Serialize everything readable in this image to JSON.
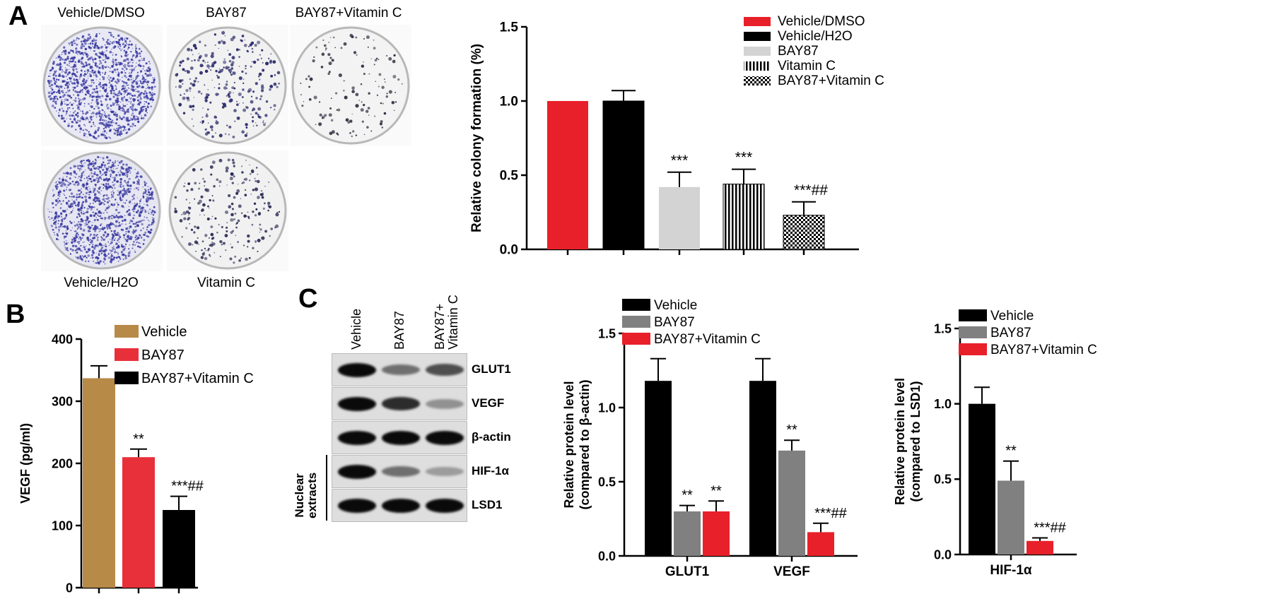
{
  "figure": {
    "panels": {
      "a": "A",
      "b": "B",
      "c": "C"
    },
    "panel_a": {
      "dishes": [
        {
          "label": "Vehicle/DMSO",
          "density": 0.95,
          "dot_color": "#3a3aa0",
          "fill": "#e9e9f5"
        },
        {
          "label": "BAY87",
          "density": 0.18,
          "dot_color": "#2a2a6a",
          "fill": "#f1f1f1"
        },
        {
          "label": "BAY87+Vitamin C",
          "density": 0.07,
          "dot_color": "#333344",
          "fill": "#f3f3f3"
        },
        {
          "label": "Vehicle/H2O",
          "density": 0.9,
          "dot_color": "#3a3aa0",
          "fill": "#e6e6f2"
        },
        {
          "label": "Vitamin C",
          "density": 0.14,
          "dot_color": "#2a2a55",
          "fill": "#f1f1f1"
        }
      ]
    },
    "panel_c_blot": {
      "lanes": [
        "Vehicle",
        "BAY87",
        "BAY87+\nVitamin C"
      ],
      "bands": [
        {
          "label": "GLUT1",
          "intensity": [
            1.0,
            0.55,
            0.7
          ]
        },
        {
          "label": "VEGF",
          "intensity": [
            1.0,
            0.85,
            0.4
          ]
        },
        {
          "label": "β-actin",
          "intensity": [
            1.0,
            1.0,
            1.0
          ]
        },
        {
          "label": "HIF-1α",
          "intensity": [
            1.0,
            0.55,
            0.35
          ]
        },
        {
          "label": "LSD1",
          "intensity": [
            1.0,
            1.0,
            1.0
          ]
        }
      ],
      "bracket_label": "Nuclear\nextracts"
    }
  },
  "chart_data": [
    {
      "id": "colony",
      "type": "bar",
      "ylabel": "Relative colony formation (%)",
      "ylim": [
        0,
        1.5
      ],
      "yticks": [
        "0.0",
        "0.5",
        "1.0",
        "1.5"
      ],
      "ytick_values": [
        0,
        0.5,
        1.0,
        1.5
      ],
      "legend_position": "top-right",
      "series": [
        {
          "name": "Vehicle/DMSO",
          "value": 1.0,
          "error": 0,
          "annotation": "",
          "color": "#e8202a",
          "pattern": "solid"
        },
        {
          "name": "Vehicle/H2O",
          "value": 1.0,
          "error": 0.07,
          "annotation": "",
          "color": "#000000",
          "pattern": "solid"
        },
        {
          "name": "BAY87",
          "value": 0.42,
          "error": 0.1,
          "annotation": "***",
          "color": "#d3d3d3",
          "pattern": "solid"
        },
        {
          "name": "Vitamin C",
          "value": 0.44,
          "error": 0.1,
          "annotation": "***",
          "color": "#000000",
          "pattern": "vstripes"
        },
        {
          "name": "BAY87+Vitamin C",
          "value": 0.23,
          "error": 0.09,
          "annotation": "***##",
          "color": "#000000",
          "pattern": "checker"
        }
      ]
    },
    {
      "id": "vegf",
      "type": "bar",
      "ylabel": "VEGF (pg/ml)",
      "ylim": [
        0,
        400
      ],
      "yticks": [
        "0",
        "100",
        "200",
        "300",
        "400"
      ],
      "ytick_values": [
        0,
        100,
        200,
        300,
        400
      ],
      "legend_position": "top-right",
      "series": [
        {
          "name": "Vehicle",
          "value": 337,
          "error": 20,
          "annotation": "",
          "color": "#b88a48"
        },
        {
          "name": "BAY87",
          "value": 210,
          "error": 13,
          "annotation": "**",
          "color": "#e8303a"
        },
        {
          "name": "BAY87+Vitamin C",
          "value": 125,
          "error": 22,
          "annotation": "***##",
          "color": "#000000"
        }
      ]
    },
    {
      "id": "protein_actin",
      "type": "bar",
      "ylabel": "Relative protein level\n(compared to β-actin)",
      "ylim": [
        0,
        1.5
      ],
      "yticks": [
        "0.0",
        "0.5",
        "1.0",
        "1.5"
      ],
      "ytick_values": [
        0,
        0.5,
        1.0,
        1.5
      ],
      "categories": [
        "GLUT1",
        "VEGF"
      ],
      "legend_position": "top",
      "series": [
        {
          "name": "Vehicle",
          "color": "#000000",
          "values": [
            1.18,
            1.18
          ],
          "errors": [
            0.15,
            0.15
          ],
          "annotations": [
            "",
            ""
          ]
        },
        {
          "name": "BAY87",
          "color": "#808080",
          "values": [
            0.3,
            0.71
          ],
          "errors": [
            0.04,
            0.07
          ],
          "annotations": [
            "**",
            "**"
          ]
        },
        {
          "name": "BAY87+Vitamin C",
          "color": "#e8202a",
          "values": [
            0.3,
            0.16
          ],
          "errors": [
            0.07,
            0.06
          ],
          "annotations": [
            "**",
            "***##"
          ]
        }
      ]
    },
    {
      "id": "protein_lsd1",
      "type": "bar",
      "ylabel": "Relative protein level\n(compared to LSD1)",
      "ylim": [
        0,
        1.5
      ],
      "yticks": [
        "0.0",
        "0.5",
        "1.0",
        "1.5"
      ],
      "ytick_values": [
        0,
        0.5,
        1.0,
        1.5
      ],
      "categories": [
        "HIF-1α"
      ],
      "legend_position": "top",
      "series": [
        {
          "name": "Vehicle",
          "color": "#000000",
          "values": [
            1.0
          ],
          "errors": [
            0.11
          ],
          "annotations": [
            ""
          ]
        },
        {
          "name": "BAY87",
          "color": "#808080",
          "values": [
            0.49
          ],
          "errors": [
            0.13
          ],
          "annotations": [
            "**"
          ]
        },
        {
          "name": "BAY87+Vitamin C",
          "color": "#e8202a",
          "values": [
            0.09
          ],
          "errors": [
            0.02
          ],
          "annotations": [
            "***##"
          ]
        }
      ]
    }
  ]
}
